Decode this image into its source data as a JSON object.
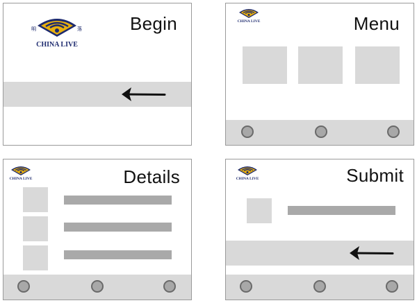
{
  "logo": {
    "wordmark": "CHINA LIVE",
    "glyph_left": "明",
    "glyph_right": "落",
    "colors": {
      "gold": "#e8b00e",
      "navy": "#1d2a6e"
    }
  },
  "panels": {
    "begin": {
      "title": "Begin"
    },
    "menu": {
      "title": "Menu"
    },
    "details": {
      "title": "Details"
    },
    "submit": {
      "title": "Submit"
    }
  },
  "colors": {
    "panel_border": "#9a9a9a",
    "band": "#d9d9d9",
    "bar": "#a9a9a9",
    "dot": "#a8a8a8"
  }
}
